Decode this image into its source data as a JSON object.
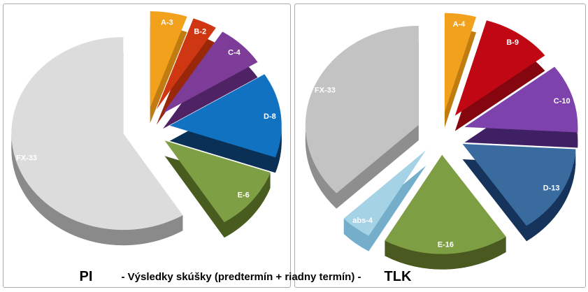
{
  "caption": {
    "center_text": "- Výsledky skúšky (predtermín + riadny termín) -"
  },
  "chart_data": [
    {
      "type": "pie",
      "style": "3d-exploded",
      "title": "PI",
      "total": 56,
      "start_angle_deg": 0,
      "direction": "clockwise",
      "legend_position": "none",
      "labels_on_slices": true,
      "slices": [
        {
          "label": "A-3",
          "category": "A",
          "value": 3,
          "color": "#F2A11D",
          "side_color": "#C07C10"
        },
        {
          "label": "B-2",
          "category": "B",
          "value": 2,
          "color": "#CE3711",
          "side_color": "#99280B"
        },
        {
          "label": "C-4",
          "category": "C",
          "value": 4,
          "color": "#7D3C98",
          "side_color": "#4F2363"
        },
        {
          "label": "D-8",
          "category": "D",
          "value": 8,
          "color": "#1272C2",
          "side_color": "#0A3055"
        },
        {
          "label": "E-6",
          "category": "E",
          "value": 6,
          "color": "#7F9F45",
          "side_color": "#495C20"
        },
        {
          "label": "FX-33",
          "category": "FX",
          "value": 33,
          "color": "#DCDCDC",
          "side_color": "#8A8A8A"
        }
      ]
    },
    {
      "type": "pie",
      "style": "3d-exploded",
      "title": "TLK",
      "total": 89,
      "start_angle_deg": 0,
      "direction": "clockwise",
      "legend_position": "none",
      "labels_on_slices": true,
      "slices": [
        {
          "label": "A-4",
          "category": "A",
          "value": 4,
          "color": "#F2A11D",
          "side_color": "#C07C10"
        },
        {
          "label": "B-9",
          "category": "B",
          "value": 9,
          "color": "#C00814",
          "side_color": "#85060E"
        },
        {
          "label": "C-10",
          "category": "C",
          "value": 10,
          "color": "#7E42AD",
          "side_color": "#3F2063"
        },
        {
          "label": "D-13",
          "category": "D",
          "value": 13,
          "color": "#3A6B9E",
          "side_color": "#16335C"
        },
        {
          "label": "E-16",
          "category": "E",
          "value": 16,
          "color": "#7E9E44",
          "side_color": "#49591F"
        },
        {
          "label": "abs-4",
          "category": "abs",
          "value": 4,
          "color": "#A6D2E6",
          "side_color": "#74AECB"
        },
        {
          "label": "FX-33",
          "category": "FX",
          "value": 33,
          "color": "#C3C3C3",
          "side_color": "#8E8E8E"
        }
      ]
    }
  ]
}
